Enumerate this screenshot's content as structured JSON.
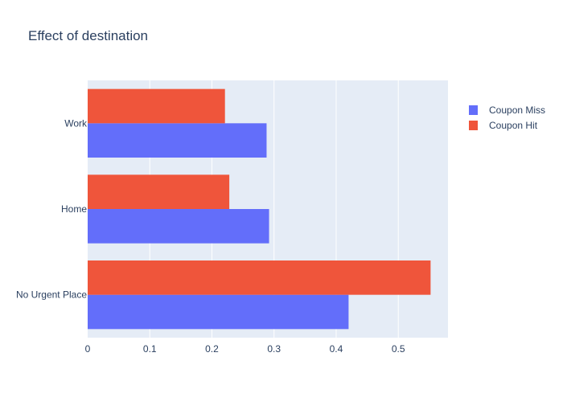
{
  "chart_data": {
    "type": "bar",
    "orientation": "horizontal",
    "title": "Effect of destination",
    "xlabel": "",
    "ylabel": "",
    "categories": [
      "Work",
      "Home",
      "No Urgent Place"
    ],
    "series": [
      {
        "name": "Coupon Miss",
        "color": "#636efa",
        "values": [
          0.288,
          0.292,
          0.42
        ]
      },
      {
        "name": "Coupon Hit",
        "color": "#ef553b",
        "values": [
          0.221,
          0.228,
          0.552
        ]
      }
    ],
    "xlim": [
      0,
      0.58
    ],
    "xticks": [
      0,
      0.1,
      0.2,
      0.3,
      0.4,
      0.5
    ],
    "xtick_labels": [
      "0",
      "0.1",
      "0.2",
      "0.3",
      "0.4",
      "0.5"
    ],
    "grid": true,
    "legend_position": "top-right",
    "colors": {
      "plot_background": "#e5ecf6",
      "grid": "#ffffff",
      "text": "#2a3f5f"
    }
  }
}
